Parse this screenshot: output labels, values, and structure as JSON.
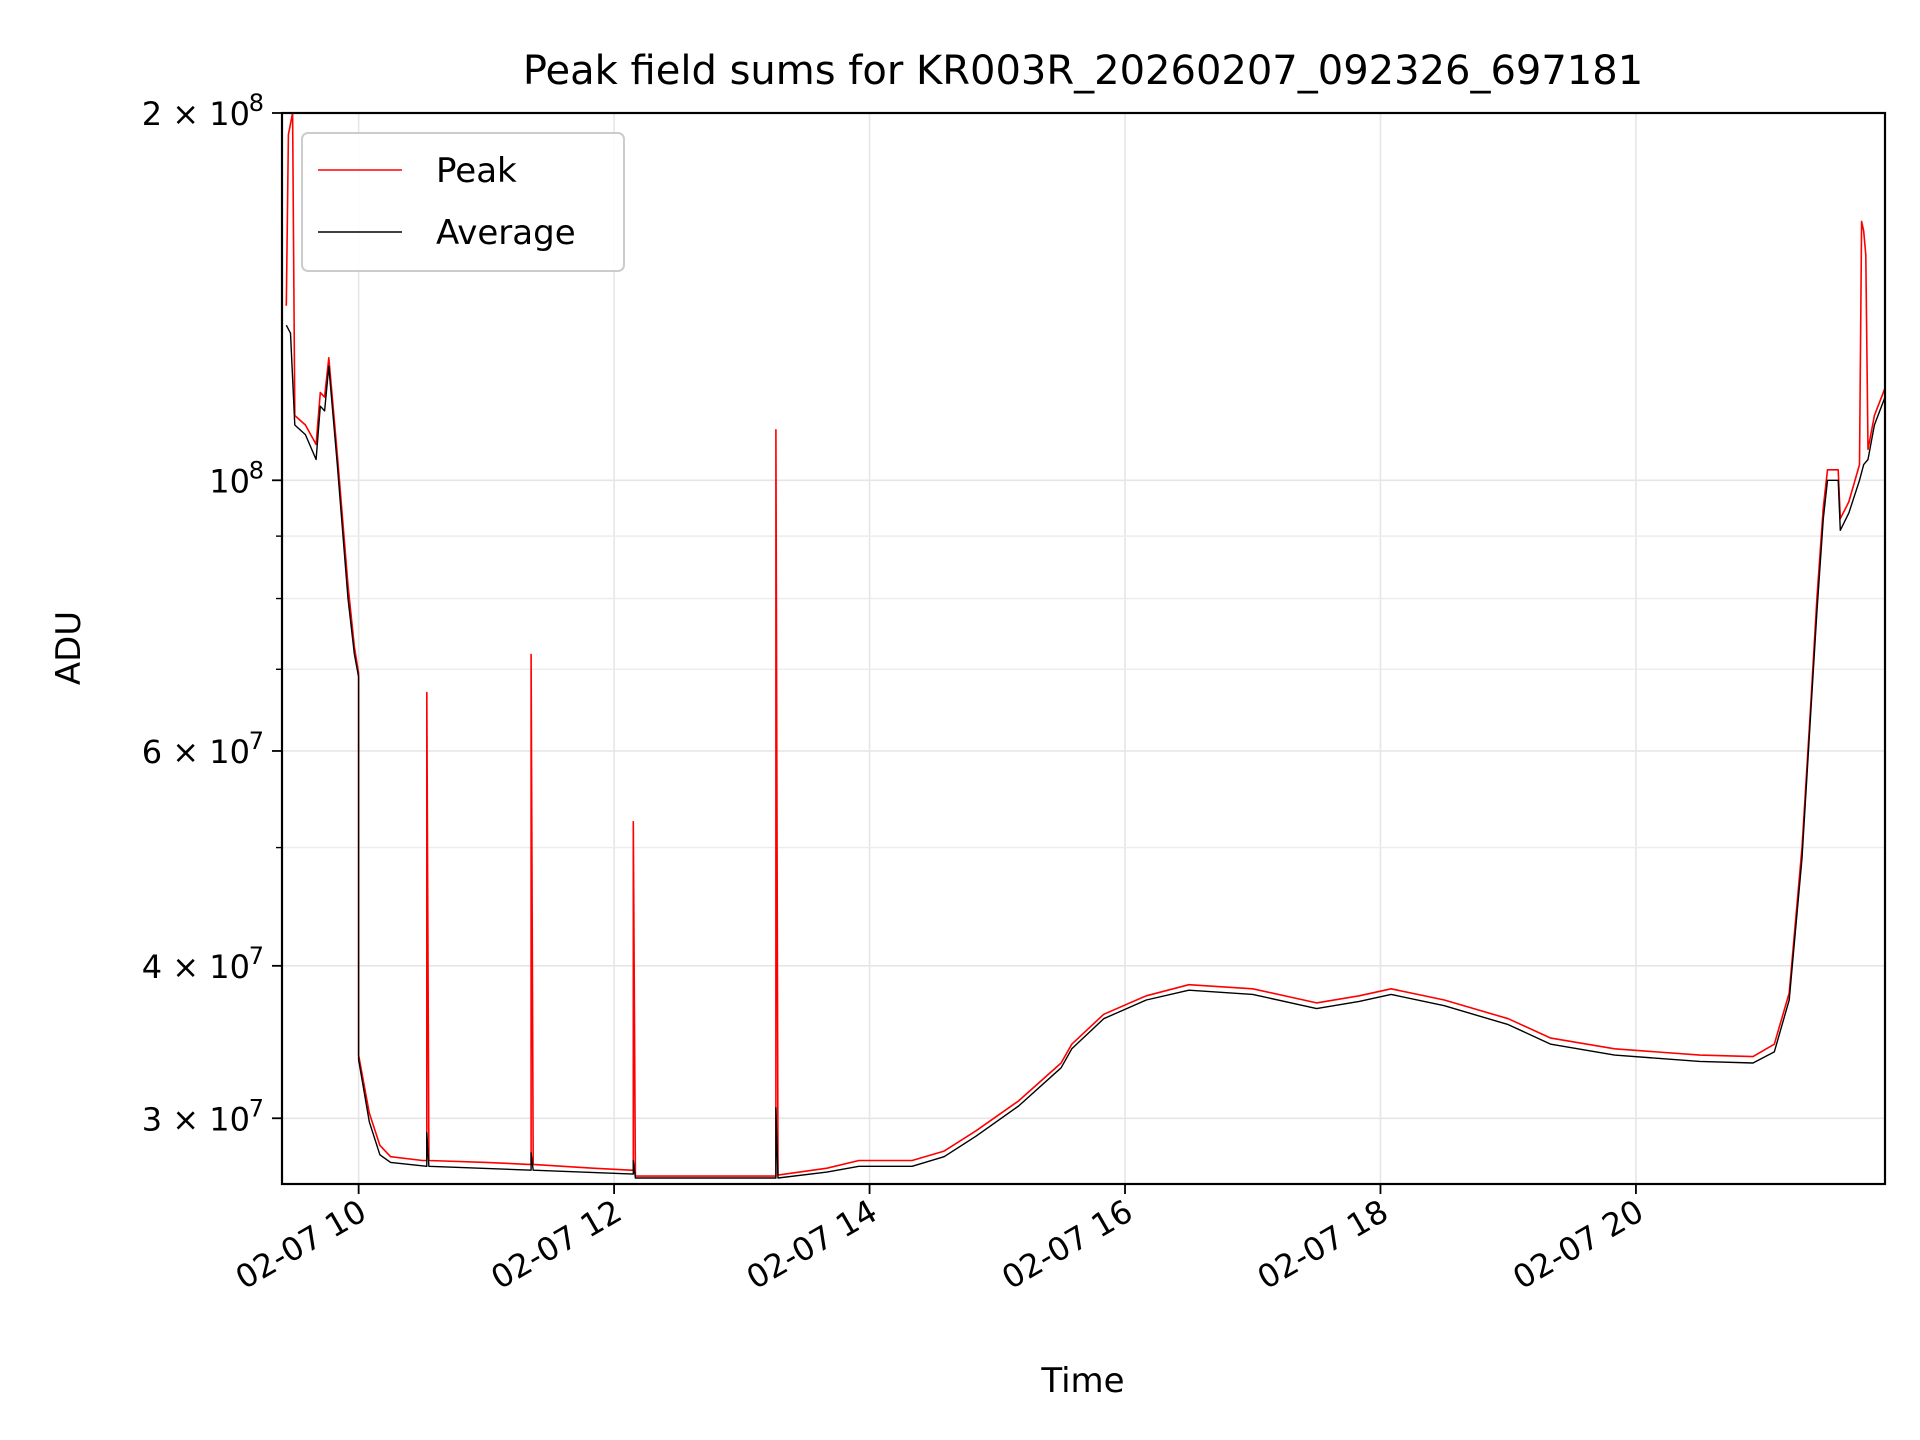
{
  "chart_data": {
    "type": "line",
    "title": "Peak field sums for KR003R_20260207_092326_697181",
    "xlabel": "Time",
    "ylabel": "ADU",
    "y_scale": "log",
    "ylim": [
      26500000,
      200000000
    ],
    "xlim": [
      "2026-02-07 09:24",
      "2026-02-07 21:57"
    ],
    "x_ticks": [
      {
        "t": "2026-02-07 10:00",
        "label": "02-07 10"
      },
      {
        "t": "2026-02-07 12:00",
        "label": "02-07 12"
      },
      {
        "t": "2026-02-07 14:00",
        "label": "02-07 14"
      },
      {
        "t": "2026-02-07 16:00",
        "label": "02-07 16"
      },
      {
        "t": "2026-02-07 18:00",
        "label": "02-07 18"
      },
      {
        "t": "2026-02-07 20:00",
        "label": "02-07 20"
      }
    ],
    "y_ticks_major": [
      {
        "v": 30000000,
        "mant": "3",
        "exp": "7"
      },
      {
        "v": 40000000,
        "mant": "4",
        "exp": "7"
      },
      {
        "v": 60000000,
        "mant": "6",
        "exp": "7"
      },
      {
        "v": 100000000,
        "mant": "",
        "exp": "8"
      },
      {
        "v": 200000000,
        "mant": "2",
        "exp": "8"
      }
    ],
    "y_ticks_minor": [
      50000000,
      70000000,
      80000000,
      90000000
    ],
    "grid": true,
    "legend_position": "top-left",
    "series": [
      {
        "name": "Peak",
        "color": "#ff0000",
        "points": [
          [
            "2026-02-07 09:26",
            139000000
          ],
          [
            "2026-02-07 09:27",
            192000000
          ],
          [
            "2026-02-07 09:29",
            200000000
          ],
          [
            "2026-02-07 09:30",
            113000000
          ],
          [
            "2026-02-07 09:35",
            111000000
          ],
          [
            "2026-02-07 09:40",
            107000000
          ],
          [
            "2026-02-07 09:42",
            118000000
          ],
          [
            "2026-02-07 09:44",
            117000000
          ],
          [
            "2026-02-07 09:46",
            126000000
          ],
          [
            "2026-02-07 09:50",
            105000000
          ],
          [
            "2026-02-07 09:55",
            82000000
          ],
          [
            "2026-02-07 09:58",
            73000000
          ],
          [
            "2026-02-07 10:00",
            69500000
          ],
          [
            "2026-02-07 10:00",
            33800000
          ],
          [
            "2026-02-07 10:05",
            30300000
          ],
          [
            "2026-02-07 10:10",
            28500000
          ],
          [
            "2026-02-07 10:15",
            27900000
          ],
          [
            "2026-02-07 10:30",
            27700000
          ],
          [
            "2026-02-07 10:32",
            27700000
          ],
          [
            "2026-02-07 10:32",
            67000000
          ],
          [
            "2026-02-07 10:33",
            27700000
          ],
          [
            "2026-02-07 11:00",
            27600000
          ],
          [
            "2026-02-07 11:20",
            27500000
          ],
          [
            "2026-02-07 11:21",
            27500000
          ],
          [
            "2026-02-07 11:21",
            72000000
          ],
          [
            "2026-02-07 11:22",
            27500000
          ],
          [
            "2026-02-07 11:50",
            27300000
          ],
          [
            "2026-02-07 12:08",
            27200000
          ],
          [
            "2026-02-07 12:09",
            27200000
          ],
          [
            "2026-02-07 12:09",
            52500000
          ],
          [
            "2026-02-07 12:10",
            26900000
          ],
          [
            "2026-02-07 12:40",
            26900000
          ],
          [
            "2026-02-07 13:15",
            26900000
          ],
          [
            "2026-02-07 13:16",
            26900000
          ],
          [
            "2026-02-07 13:16",
            110000000
          ],
          [
            "2026-02-07 13:17",
            26950000
          ],
          [
            "2026-02-07 13:40",
            27300000
          ],
          [
            "2026-02-07 13:55",
            27700000
          ],
          [
            "2026-02-07 14:20",
            27700000
          ],
          [
            "2026-02-07 14:35",
            28200000
          ],
          [
            "2026-02-07 14:50",
            29300000
          ],
          [
            "2026-02-07 15:10",
            31000000
          ],
          [
            "2026-02-07 15:30",
            33300000
          ],
          [
            "2026-02-07 15:35",
            34500000
          ],
          [
            "2026-02-07 15:50",
            36500000
          ],
          [
            "2026-02-07 16:10",
            37800000
          ],
          [
            "2026-02-07 16:30",
            38600000
          ],
          [
            "2026-02-07 17:00",
            38300000
          ],
          [
            "2026-02-07 17:30",
            37300000
          ],
          [
            "2026-02-07 17:50",
            37800000
          ],
          [
            "2026-02-07 18:05",
            38300000
          ],
          [
            "2026-02-07 18:30",
            37500000
          ],
          [
            "2026-02-07 19:00",
            36200000
          ],
          [
            "2026-02-07 19:20",
            34900000
          ],
          [
            "2026-02-07 19:50",
            34200000
          ],
          [
            "2026-02-07 20:30",
            33800000
          ],
          [
            "2026-02-07 20:55",
            33700000
          ],
          [
            "2026-02-07 21:05",
            34500000
          ],
          [
            "2026-02-07 21:12",
            38000000
          ],
          [
            "2026-02-07 21:18",
            50000000
          ],
          [
            "2026-02-07 21:22",
            65000000
          ],
          [
            "2026-02-07 21:25",
            80000000
          ],
          [
            "2026-02-07 21:28",
            95000000
          ],
          [
            "2026-02-07 21:30",
            102000000
          ],
          [
            "2026-02-07 21:35",
            102000000
          ],
          [
            "2026-02-07 21:36",
            93000000
          ],
          [
            "2026-02-07 21:40",
            96000000
          ],
          [
            "2026-02-07 21:45",
            103000000
          ],
          [
            "2026-02-07 21:46",
            163000000
          ],
          [
            "2026-02-07 21:47",
            160000000
          ],
          [
            "2026-02-07 21:48",
            153000000
          ],
          [
            "2026-02-07 21:49",
            106000000
          ],
          [
            "2026-02-07 21:52",
            113000000
          ],
          [
            "2026-02-07 21:57",
            119000000
          ]
        ]
      },
      {
        "name": "Average",
        "color": "#000000",
        "points": [
          [
            "2026-02-07 09:26",
            134000000
          ],
          [
            "2026-02-07 09:28",
            132000000
          ],
          [
            "2026-02-07 09:30",
            111000000
          ],
          [
            "2026-02-07 09:35",
            109000000
          ],
          [
            "2026-02-07 09:40",
            104000000
          ],
          [
            "2026-02-07 09:42",
            115000000
          ],
          [
            "2026-02-07 09:44",
            114000000
          ],
          [
            "2026-02-07 09:46",
            124000000
          ],
          [
            "2026-02-07 09:50",
            103000000
          ],
          [
            "2026-02-07 09:55",
            80000000
          ],
          [
            "2026-02-07 09:58",
            72000000
          ],
          [
            "2026-02-07 10:00",
            69000000
          ],
          [
            "2026-02-07 10:00",
            33500000
          ],
          [
            "2026-02-07 10:05",
            29800000
          ],
          [
            "2026-02-07 10:10",
            28000000
          ],
          [
            "2026-02-07 10:15",
            27600000
          ],
          [
            "2026-02-07 10:32",
            27400000
          ],
          [
            "2026-02-07 10:32",
            29200000
          ],
          [
            "2026-02-07 10:33",
            27400000
          ],
          [
            "2026-02-07 11:21",
            27200000
          ],
          [
            "2026-02-07 11:21",
            28100000
          ],
          [
            "2026-02-07 11:22",
            27200000
          ],
          [
            "2026-02-07 12:09",
            27000000
          ],
          [
            "2026-02-07 12:09",
            27700000
          ],
          [
            "2026-02-07 12:10",
            26800000
          ],
          [
            "2026-02-07 13:16",
            26800000
          ],
          [
            "2026-02-07 13:16",
            30600000
          ],
          [
            "2026-02-07 13:17",
            26800000
          ],
          [
            "2026-02-07 13:40",
            27100000
          ],
          [
            "2026-02-07 13:55",
            27400000
          ],
          [
            "2026-02-07 14:20",
            27400000
          ],
          [
            "2026-02-07 14:35",
            27900000
          ],
          [
            "2026-02-07 14:50",
            29000000
          ],
          [
            "2026-02-07 15:10",
            30700000
          ],
          [
            "2026-02-07 15:30",
            33000000
          ],
          [
            "2026-02-07 15:35",
            34200000
          ],
          [
            "2026-02-07 15:50",
            36200000
          ],
          [
            "2026-02-07 16:10",
            37500000
          ],
          [
            "2026-02-07 16:30",
            38200000
          ],
          [
            "2026-02-07 17:00",
            37900000
          ],
          [
            "2026-02-07 17:30",
            36900000
          ],
          [
            "2026-02-07 17:50",
            37400000
          ],
          [
            "2026-02-07 18:05",
            37900000
          ],
          [
            "2026-02-07 18:30",
            37100000
          ],
          [
            "2026-02-07 19:00",
            35800000
          ],
          [
            "2026-02-07 19:20",
            34500000
          ],
          [
            "2026-02-07 19:50",
            33800000
          ],
          [
            "2026-02-07 20:30",
            33400000
          ],
          [
            "2026-02-07 20:55",
            33300000
          ],
          [
            "2026-02-07 21:05",
            34000000
          ],
          [
            "2026-02-07 21:12",
            37500000
          ],
          [
            "2026-02-07 21:18",
            49000000
          ],
          [
            "2026-02-07 21:22",
            64000000
          ],
          [
            "2026-02-07 21:25",
            78000000
          ],
          [
            "2026-02-07 21:28",
            93000000
          ],
          [
            "2026-02-07 21:30",
            100000000
          ],
          [
            "2026-02-07 21:35",
            100000000
          ],
          [
            "2026-02-07 21:36",
            91000000
          ],
          [
            "2026-02-07 21:40",
            94000000
          ],
          [
            "2026-02-07 21:45",
            100000000
          ],
          [
            "2026-02-07 21:47",
            103000000
          ],
          [
            "2026-02-07 21:49",
            104000000
          ],
          [
            "2026-02-07 21:52",
            111000000
          ],
          [
            "2026-02-07 21:57",
            117000000
          ]
        ]
      }
    ]
  }
}
